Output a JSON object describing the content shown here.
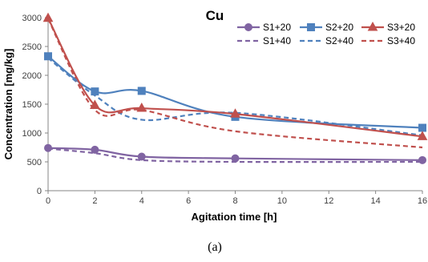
{
  "caption": "(a)",
  "chart_data": {
    "type": "line",
    "title": "Cu",
    "xlabel": "Agitation time [h]",
    "ylabel": "Concentration [mg/kg]",
    "xlim": [
      0,
      16
    ],
    "ylim": [
      0,
      3000
    ],
    "xticks": [
      0,
      2,
      4,
      6,
      8,
      10,
      12,
      14,
      16
    ],
    "yticks": [
      0,
      500,
      1000,
      1500,
      2000,
      2500,
      3000
    ],
    "grid": false,
    "legend_position": "top-right",
    "x": [
      0,
      2,
      4,
      8,
      16
    ],
    "series": [
      {
        "name": "S1+20",
        "values": [
          740,
          710,
          590,
          560,
          530
        ],
        "color": "#8064a2",
        "dash": false,
        "marker": "circle"
      },
      {
        "name": "S2+20",
        "values": [
          2330,
          1720,
          1730,
          1280,
          1090
        ],
        "color": "#4f81bd",
        "dash": false,
        "marker": "square"
      },
      {
        "name": "S3+20",
        "values": [
          2990,
          1480,
          1430,
          1330,
          940
        ],
        "color": "#c0504d",
        "dash": false,
        "marker": "triangle"
      },
      {
        "name": "S1+40",
        "values": [
          730,
          650,
          530,
          500,
          500
        ],
        "color": "#8064a2",
        "dash": true,
        "marker": "none"
      },
      {
        "name": "S2+40",
        "values": [
          2300,
          1650,
          1230,
          1350,
          960
        ],
        "color": "#4f81bd",
        "dash": true,
        "marker": "none"
      },
      {
        "name": "S3+40",
        "values": [
          2980,
          1400,
          1400,
          1030,
          750
        ],
        "color": "#c0504d",
        "dash": true,
        "marker": "none"
      }
    ]
  }
}
